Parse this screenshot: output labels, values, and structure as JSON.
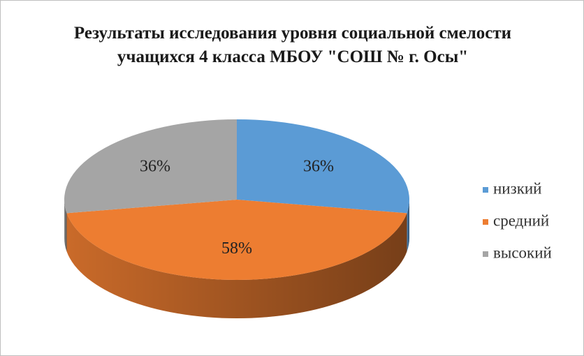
{
  "chart_data": {
    "type": "pie",
    "title": "Результаты исследования уровня социальной смелости учащихся 4 класса МБОУ \"СОШ № г. Осы\"",
    "categories": [
      "низкий",
      "средний",
      "высокий"
    ],
    "values": [
      36,
      58,
      36
    ],
    "value_labels": [
      "36%",
      "58%",
      "36%"
    ],
    "colors": [
      "#5b9bd5",
      "#ed7d31",
      "#a5a5a5"
    ],
    "legend": "right"
  }
}
